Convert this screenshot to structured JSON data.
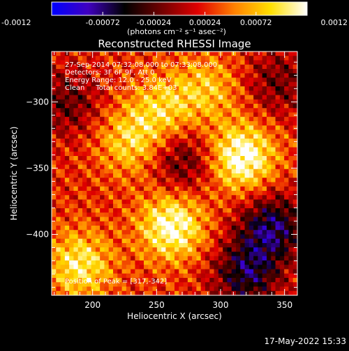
{
  "chart_data": {
    "type": "heatmap",
    "title": "Reconstructed RHESSI Image",
    "xlabel": "Heliocentric X (arcsec)",
    "ylabel": "Heliocentric Y (arcsec)",
    "xlim": [
      168,
      360
    ],
    "ylim": [
      -446,
      -262
    ],
    "x_ticks": [
      200,
      250,
      300,
      350
    ],
    "y_ticks": [
      -300,
      -350,
      -400
    ],
    "annotations": [
      "27-Sep-2014 07:32:08.000 to 07:33:08.000",
      "Detectors: 3F 6F 9F, Att 0",
      "Energy Range: 12.0 - 25.0 keV",
      "Clean     Total counts: 3.84E+03"
    ],
    "peak_label": "Position of Peak = [317,-342]",
    "peak": [
      317,
      -342
    ],
    "sources": [
      {
        "x": 317,
        "y": -342,
        "amp": 1.0
      },
      {
        "x": 262,
        "y": -394,
        "amp": 0.95
      },
      {
        "x": 190,
        "y": -423,
        "amp": 0.75
      },
      {
        "x": 230,
        "y": -330,
        "amp": 0.6
      },
      {
        "x": 255,
        "y": -305,
        "amp": 0.55
      },
      {
        "x": 290,
        "y": -290,
        "amp": 0.5
      }
    ],
    "negative_regions": [
      {
        "x": 340,
        "y": -395,
        "amp": -0.9
      },
      {
        "x": 320,
        "y": -430,
        "amp": -0.8
      },
      {
        "x": 270,
        "y": -345,
        "amp": -0.55
      },
      {
        "x": 180,
        "y": -300,
        "amp": -0.5
      },
      {
        "x": 345,
        "y": -285,
        "amp": -0.45
      }
    ],
    "colorbar": {
      "ticks": [
        "-0.0012",
        "-0.00072",
        "-0.00024",
        "0.00024",
        "0.00072",
        "0.0012"
      ],
      "range": [
        -0.0012,
        0.0012
      ],
      "units_label": "(photons cm⁻² s⁻¹ asec⁻²)",
      "colors": [
        "#0000ff",
        "#4000c0",
        "#000000",
        "#700000",
        "#e00000",
        "#ff8000",
        "#ffe000",
        "#ffffff"
      ]
    }
  },
  "footer": {
    "timestamp": "17-May-2022 15:33"
  }
}
